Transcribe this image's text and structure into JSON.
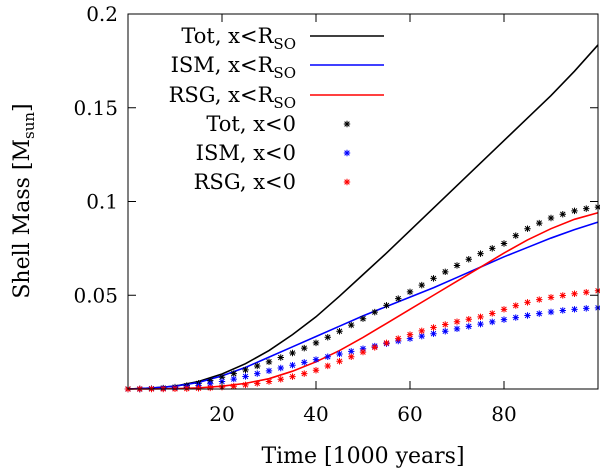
{
  "chart_data": {
    "type": "line",
    "xlabel": "Time [1000 years]",
    "ylabel_main": "Shell Mass [M",
    "ylabel_sub": "sun",
    "ylabel_end": "]",
    "xlim": [
      0,
      100
    ],
    "ylim": [
      0,
      0.2
    ],
    "xticks": [
      20,
      40,
      60,
      80
    ],
    "xtick_labels": [
      "20",
      "40",
      "60",
      "80"
    ],
    "yticks": [
      0.05,
      0.1,
      0.15,
      0.2
    ],
    "ytick_labels": [
      "0.05",
      "0.1",
      "0.15",
      "0.2"
    ],
    "grid": false,
    "legend_position": "top-left",
    "series": [
      {
        "name": "Tot, x<R_SO",
        "label_main": "Tot, x<R",
        "label_sub": "SO",
        "style": "line",
        "color": "#000000",
        "x": [
          0,
          5,
          10,
          15,
          20,
          25,
          30,
          35,
          40,
          45,
          50,
          55,
          60,
          65,
          70,
          75,
          80,
          85,
          90,
          95,
          100
        ],
        "values": [
          0,
          0.0005,
          0.0015,
          0.004,
          0.008,
          0.0135,
          0.0205,
          0.029,
          0.0385,
          0.0495,
          0.061,
          0.0725,
          0.0845,
          0.0965,
          0.1085,
          0.1205,
          0.1325,
          0.1445,
          0.1565,
          0.1695,
          0.1835
        ]
      },
      {
        "name": "ISM, x<R_SO",
        "label_main": "ISM, x<R",
        "label_sub": "SO",
        "style": "line",
        "color": "#0000ff",
        "x": [
          0,
          5,
          10,
          15,
          20,
          25,
          30,
          35,
          40,
          45,
          50,
          55,
          60,
          65,
          70,
          75,
          80,
          85,
          90,
          95,
          100
        ],
        "values": [
          0,
          0.0005,
          0.0015,
          0.0035,
          0.007,
          0.0115,
          0.017,
          0.0225,
          0.028,
          0.0335,
          0.039,
          0.044,
          0.049,
          0.054,
          0.0595,
          0.065,
          0.0705,
          0.0755,
          0.0805,
          0.085,
          0.089
        ]
      },
      {
        "name": "RSG, x<R_SO",
        "label_main": "RSG, x<R",
        "label_sub": "SO",
        "style": "line",
        "color": "#ff0000",
        "x": [
          0,
          5,
          10,
          15,
          20,
          25,
          30,
          35,
          40,
          45,
          50,
          55,
          60,
          65,
          70,
          75,
          80,
          85,
          90,
          95,
          100
        ],
        "values": [
          0,
          0,
          0.0002,
          0.0006,
          0.0015,
          0.003,
          0.0055,
          0.0095,
          0.0145,
          0.0205,
          0.0275,
          0.035,
          0.0425,
          0.05,
          0.0575,
          0.065,
          0.0725,
          0.0795,
          0.0855,
          0.0905,
          0.094
        ]
      },
      {
        "name": "Tot, x<0",
        "label_main": "Tot, x<0",
        "label_sub": "",
        "style": "points",
        "color": "#000000",
        "x": [
          0,
          2.5,
          5,
          7.5,
          10,
          12.5,
          15,
          17.5,
          20,
          22.5,
          25,
          27.5,
          30,
          32.5,
          35,
          37.5,
          40,
          42.5,
          45,
          47.5,
          50,
          52.5,
          55,
          57.5,
          60,
          62.5,
          65,
          67.5,
          70,
          72.5,
          75,
          77.5,
          80,
          82.5,
          85,
          87.5,
          90,
          92.5,
          95,
          97.5,
          100
        ],
        "values": [
          0,
          0,
          0.0002,
          0.0005,
          0.001,
          0.0018,
          0.003,
          0.0045,
          0.0063,
          0.0082,
          0.0102,
          0.0123,
          0.0145,
          0.0168,
          0.0192,
          0.0218,
          0.0246,
          0.0276,
          0.0308,
          0.0341,
          0.0375,
          0.041,
          0.0446,
          0.0482,
          0.0518,
          0.0554,
          0.059,
          0.0625,
          0.0659,
          0.0692,
          0.0722,
          0.075,
          0.0776,
          0.0818,
          0.0855,
          0.0885,
          0.0912,
          0.0932,
          0.095,
          0.0962,
          0.097
        ]
      },
      {
        "name": "ISM, x<0",
        "label_main": "ISM, x<0",
        "label_sub": "",
        "style": "points",
        "color": "#0000ff",
        "x": [
          0,
          2.5,
          5,
          7.5,
          10,
          12.5,
          15,
          17.5,
          20,
          22.5,
          25,
          27.5,
          30,
          32.5,
          35,
          37.5,
          40,
          42.5,
          45,
          47.5,
          50,
          52.5,
          55,
          57.5,
          60,
          62.5,
          65,
          67.5,
          70,
          72.5,
          75,
          77.5,
          80,
          82.5,
          85,
          87.5,
          90,
          92.5,
          95,
          97.5,
          100
        ],
        "values": [
          0,
          0,
          0.0001,
          0.0003,
          0.0006,
          0.0011,
          0.0018,
          0.0028,
          0.004,
          0.0053,
          0.0067,
          0.0082,
          0.0097,
          0.0112,
          0.0127,
          0.0142,
          0.0157,
          0.0172,
          0.0187,
          0.0201,
          0.0215,
          0.0229,
          0.0242,
          0.0256,
          0.0269,
          0.0282,
          0.0295,
          0.0308,
          0.0321,
          0.0334,
          0.0346,
          0.0358,
          0.037,
          0.0381,
          0.0392,
          0.0402,
          0.0411,
          0.0419,
          0.0425,
          0.043,
          0.0433
        ]
      },
      {
        "name": "RSG, x<0",
        "label_main": "RSG, x<0",
        "label_sub": "",
        "style": "points",
        "color": "#ff0000",
        "x": [
          0,
          2.5,
          5,
          7.5,
          10,
          12.5,
          15,
          17.5,
          20,
          22.5,
          25,
          27.5,
          30,
          32.5,
          35,
          37.5,
          40,
          42.5,
          45,
          47.5,
          50,
          52.5,
          55,
          57.5,
          60,
          62.5,
          65,
          67.5,
          70,
          72.5,
          75,
          77.5,
          80,
          82.5,
          85,
          87.5,
          90,
          92.5,
          95,
          97.5,
          100
        ],
        "values": [
          0,
          0,
          0,
          0,
          0.0001,
          0.0002,
          0.0004,
          0.0006,
          0.001,
          0.0015,
          0.0022,
          0.003,
          0.004,
          0.0052,
          0.0066,
          0.0082,
          0.01,
          0.0123,
          0.0148,
          0.0172,
          0.0197,
          0.0222,
          0.0246,
          0.0269,
          0.029,
          0.031,
          0.0328,
          0.0344,
          0.0359,
          0.0372,
          0.0385,
          0.0403,
          0.0425,
          0.0445,
          0.0462,
          0.0477,
          0.0489,
          0.0499,
          0.0508,
          0.0516,
          0.0524
        ]
      }
    ]
  }
}
